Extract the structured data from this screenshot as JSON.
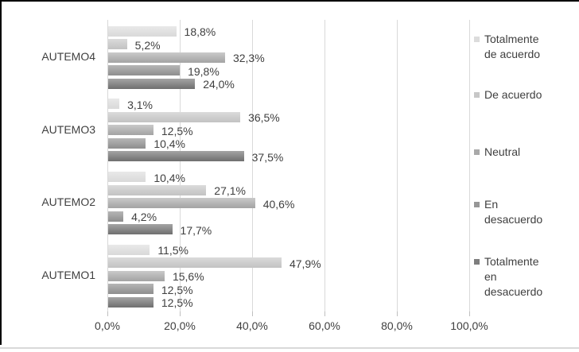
{
  "chart_data": {
    "type": "bar",
    "orientation": "horizontal",
    "title": "",
    "categories": [
      "AUTEMO4",
      "AUTEMO3",
      "AUTEMO2",
      "AUTEMO1"
    ],
    "series": [
      {
        "name": "Totalmente de acuerdo",
        "legend_lines": [
          "Totalmente",
          "de acuerdo"
        ],
        "values": [
          18.8,
          3.1,
          10.4,
          11.5
        ],
        "labels": [
          "18,8%",
          "3,1%",
          "10,4%",
          "11,5%"
        ],
        "bar_gradient": [
          "#e9e9e9",
          "#d9d9d9"
        ],
        "legend_color": "#dcdcdc"
      },
      {
        "name": "De acuerdo",
        "legend_lines": [
          "De acuerdo"
        ],
        "values": [
          5.2,
          36.5,
          27.1,
          47.9
        ],
        "labels": [
          "5,2%",
          "36,5%",
          "27,1%",
          "47,9%"
        ],
        "bar_gradient": [
          "#dbdbdb",
          "#c2c2c2"
        ],
        "legend_color": "#c7c7c7"
      },
      {
        "name": "Neutral",
        "legend_lines": [
          "Neutral"
        ],
        "values": [
          32.3,
          12.5,
          40.6,
          15.6
        ],
        "labels": [
          "32,3%",
          "12,5%",
          "40,6%",
          "15,6%"
        ],
        "bar_gradient": [
          "#c9c9c9",
          "#a3a3a3"
        ],
        "legend_color": "#a9a9a9"
      },
      {
        "name": "En desacuerdo",
        "legend_lines": [
          "En",
          "desacuerdo"
        ],
        "values": [
          19.8,
          10.4,
          4.2,
          12.5
        ],
        "labels": [
          "19,8%",
          "10,4%",
          "4,2%",
          "12,5%"
        ],
        "bar_gradient": [
          "#b6b6b6",
          "#8d8d8d"
        ],
        "legend_color": "#979797"
      },
      {
        "name": "Totalmente en desacuerdo",
        "legend_lines": [
          "Totalmente",
          "en",
          "desacuerdo"
        ],
        "values": [
          24.0,
          37.5,
          17.7,
          12.5
        ],
        "labels": [
          "24,0%",
          "37,5%",
          "17,7%",
          "12,5%"
        ],
        "bar_gradient": [
          "#a4a4a4",
          "#6f6f6f"
        ],
        "legend_color": "#7e7e7e"
      }
    ],
    "x_axis": {
      "tick_labels": [
        "0,0%",
        "20,0%",
        "40,0%",
        "60,0%",
        "80,0%",
        "100,0%"
      ],
      "min": 0,
      "max": 100,
      "step": 20
    },
    "grid": true,
    "legend_position": "right",
    "colors": {
      "gridline": "#d9d9d9",
      "tick": "#bfbfbf",
      "text": "#3f3f3f",
      "background": "#ffffff",
      "frame": "#000000"
    }
  }
}
